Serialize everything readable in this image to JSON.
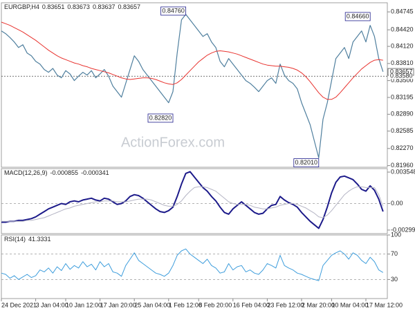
{
  "chart_data": [
    {
      "type": "line",
      "title": "EURGBP,H4",
      "header_values": [
        0.83651,
        0.83673,
        0.83637,
        0.83657
      ],
      "ylim": [
        0.8193,
        0.8491
      ],
      "yticks": [
        {
          "value": 0.84745,
          "label": "0.84745"
        },
        {
          "value": 0.8442,
          "label": "0.84420"
        },
        {
          "value": 0.8412,
          "label": "0.84120"
        },
        {
          "value": 0.8381,
          "label": "0.83810"
        },
        {
          "value": 0.835,
          "label": "0.83500"
        },
        {
          "value": 0.83195,
          "label": "0.83195"
        },
        {
          "value": 0.8289,
          "label": "0.82890"
        },
        {
          "value": 0.82585,
          "label": "0.82585"
        },
        {
          "value": 0.8227,
          "label": "0.82270"
        },
        {
          "value": 0.8196,
          "label": "0.81960"
        }
      ],
      "series": [
        {
          "color": "#4f7f9e",
          "width": 1.2,
          "values": [
            0.844,
            0.8435,
            0.8428,
            0.842,
            0.841,
            0.8415,
            0.84,
            0.8395,
            0.8385,
            0.838,
            0.837,
            0.8365,
            0.8372,
            0.836,
            0.8355,
            0.8368,
            0.8362,
            0.835,
            0.8358,
            0.8365,
            0.836,
            0.8368,
            0.8355,
            0.8362,
            0.837,
            0.8358,
            0.834,
            0.833,
            0.832,
            0.8345,
            0.837,
            0.8395,
            0.8385,
            0.837,
            0.836,
            0.835,
            0.834,
            0.833,
            0.832,
            0.831,
            0.833,
            0.84,
            0.846,
            0.847,
            0.846,
            0.845,
            0.844,
            0.843,
            0.8435,
            0.842,
            0.841,
            0.8385,
            0.8375,
            0.839,
            0.838,
            0.837,
            0.836,
            0.835,
            0.8345,
            0.8338,
            0.833,
            0.834,
            0.835,
            0.8355,
            0.8345,
            0.838,
            0.836,
            0.835,
            0.8345,
            0.8335,
            0.831,
            0.829,
            0.827,
            0.824,
            0.821,
            0.828,
            0.831,
            0.835,
            0.839,
            0.84,
            0.841,
            0.839,
            0.842,
            0.843,
            0.844,
            0.842,
            0.845,
            0.843,
            0.839,
            0.8366
          ]
        },
        {
          "color": "#e8322e",
          "width": 1,
          "values": [
            0.8456,
            0.8453,
            0.845,
            0.8446,
            0.8442,
            0.8438,
            0.8433,
            0.8428,
            0.8423,
            0.8417,
            0.8411,
            0.8405,
            0.84,
            0.8395,
            0.8391,
            0.8388,
            0.8385,
            0.8382,
            0.838,
            0.8377,
            0.8375,
            0.8372,
            0.837,
            0.8368,
            0.8366,
            0.8364,
            0.8361,
            0.8358,
            0.8355,
            0.8353,
            0.8352,
            0.8353,
            0.8354,
            0.8355,
            0.8355,
            0.8354,
            0.8352,
            0.8349,
            0.8346,
            0.8344,
            0.8343,
            0.8346,
            0.8352,
            0.836,
            0.8368,
            0.8376,
            0.8384,
            0.839,
            0.8396,
            0.84,
            0.8403,
            0.8404,
            0.8403,
            0.8402,
            0.84,
            0.8398,
            0.8395,
            0.8392,
            0.8389,
            0.8386,
            0.8383,
            0.838,
            0.8378,
            0.8377,
            0.8376,
            0.8376,
            0.8375,
            0.8374,
            0.8372,
            0.8369,
            0.8364,
            0.8357,
            0.8348,
            0.8338,
            0.8328,
            0.832,
            0.8316,
            0.8316,
            0.832,
            0.8328,
            0.8337,
            0.8346,
            0.8355,
            0.8363,
            0.8371,
            0.8377,
            0.8383,
            0.8387,
            0.8388,
            0.8387
          ]
        }
      ],
      "annotations": [
        {
          "x": 43,
          "value": 0.8476,
          "label": "0.84760"
        },
        {
          "x": 40,
          "value": 0.8282,
          "label": "0.82820"
        },
        {
          "x": 74,
          "value": 0.8201,
          "label": "0.82010"
        },
        {
          "x": 86,
          "value": 0.8466,
          "label": "0.84660"
        }
      ],
      "price_markers": [
        {
          "value": 0.83657,
          "label": "0.83657",
          "style": "box"
        },
        {
          "value": 0.8358,
          "label": "0.83580",
          "style": "dotted"
        }
      ]
    },
    {
      "type": "line",
      "title": "MACD(12,26,9)",
      "header_values": [
        -0.000855,
        -0.000341
      ],
      "ylim": [
        -0.00339,
        0.00394
      ],
      "yticks": [
        0.003548,
        {
          "value": 0,
          "label": "0.00"
        },
        -0.002992
      ],
      "reference_lines": [
        0
      ],
      "series": [
        {
          "color": "#1c1a8a",
          "width": 2,
          "values": [
            -0.0021,
            -0.0021,
            -0.002,
            -0.002,
            -0.0019,
            -0.0019,
            -0.0018,
            -0.0017,
            -0.0015,
            -0.0012,
            -0.0009,
            -0.0006,
            -0.0004,
            -0.0002,
            0.0,
            -0.0001,
            0.0002,
            0.0003,
            0.0002,
            0.0004,
            0.0005,
            0.0006,
            0.0004,
            0.0003,
            0.0006,
            0.0005,
            0.0002,
            -0.0001,
            0.0,
            0.0003,
            0.0008,
            0.001,
            0.0009,
            0.0006,
            0.0002,
            -0.0002,
            -0.0006,
            -0.0009,
            -0.001,
            -0.0008,
            -0.0004,
            0.0008,
            0.0022,
            0.0034,
            0.0036,
            0.003,
            0.0024,
            0.0018,
            0.0014,
            0.0008,
            0.0003,
            -0.0004,
            -0.001,
            -0.0012,
            -0.0006,
            -0.0002,
            0.0002,
            -0.0002,
            -0.0006,
            -0.001,
            -0.0012,
            -0.0011,
            -0.0006,
            -0.0002,
            -0.0001,
            0.0008,
            0.0004,
            0.0001,
            -0.0001,
            -0.0004,
            -0.001,
            -0.0015,
            -0.002,
            -0.0024,
            -0.0028,
            -0.0018,
            -0.0004,
            0.0012,
            0.0024,
            0.003,
            0.0031,
            0.0029,
            0.0027,
            0.0022,
            0.0016,
            0.0014,
            0.002,
            0.0015,
            0.0005,
            -0.0009
          ]
        },
        {
          "color": "#b4b4c4",
          "width": 1,
          "values": [
            -0.002,
            -0.002,
            -0.002,
            -0.002,
            -0.002,
            -0.002,
            -0.0019,
            -0.0019,
            -0.0018,
            -0.0017,
            -0.0016,
            -0.0014,
            -0.0012,
            -0.001,
            -0.0008,
            -0.0006,
            -0.0005,
            -0.0003,
            -0.0002,
            -0.0001,
            0.0,
            0.0001,
            0.0002,
            0.0002,
            0.0003,
            0.0003,
            0.0003,
            0.0002,
            0.0002,
            0.0002,
            0.0003,
            0.0004,
            0.0005,
            0.0005,
            0.0005,
            0.0004,
            0.0002,
            0.0,
            -0.0002,
            -0.0003,
            -0.0003,
            -0.0001,
            0.0003,
            0.0009,
            0.0014,
            0.0018,
            0.0019,
            0.0019,
            0.0018,
            0.0016,
            0.0014,
            0.001,
            0.0006,
            0.0002,
            0.0,
            -0.0001,
            -0.0001,
            -0.0001,
            -0.0002,
            -0.0004,
            -0.0005,
            -0.0006,
            -0.0006,
            -0.0005,
            -0.0004,
            -0.0002,
            -0.0001,
            0.0,
            0.0,
            -0.0001,
            -0.0003,
            -0.0005,
            -0.0008,
            -0.0011,
            -0.0015,
            -0.0016,
            -0.0013,
            -0.0008,
            -0.0002,
            0.0004,
            0.001,
            0.0014,
            0.0017,
            0.0019,
            0.0019,
            0.0018,
            0.0018,
            0.0018,
            0.001,
            -0.0003
          ]
        }
      ]
    },
    {
      "type": "line",
      "title": "RSI(14)",
      "header_values": [
        41.3331
      ],
      "ylim": [
        0,
        100
      ],
      "yticks": [
        100,
        70,
        30
      ],
      "reference_lines": [
        70,
        30
      ],
      "series": [
        {
          "color": "#3d9ddc",
          "width": 1,
          "values": [
            40,
            38,
            32,
            36,
            30,
            34,
            38,
            33,
            36,
            45,
            42,
            48,
            40,
            50,
            44,
            55,
            46,
            52,
            48,
            58,
            50,
            54,
            45,
            58,
            50,
            55,
            42,
            40,
            35,
            52,
            62,
            72,
            60,
            55,
            50,
            45,
            40,
            38,
            35,
            40,
            52,
            68,
            75,
            78,
            70,
            65,
            60,
            55,
            62,
            52,
            48,
            40,
            42,
            55,
            45,
            50,
            52,
            42,
            45,
            40,
            38,
            45,
            55,
            52,
            48,
            68,
            52,
            48,
            45,
            40,
            38,
            35,
            32,
            30,
            28,
            52,
            60,
            68,
            72,
            75,
            70,
            62,
            72,
            68,
            60,
            55,
            65,
            58,
            45,
            41
          ]
        }
      ]
    }
  ],
  "time_axis": {
    "xlim": [
      0,
      90
    ],
    "xticks": [
      {
        "value": 0,
        "label": "24 Dec 2021"
      },
      {
        "value": 8,
        "label": "3 Jan 04:00"
      },
      {
        "value": 15,
        "label": "10 Jan 12:00"
      },
      {
        "value": 23,
        "label": "17 Jan 20:00"
      },
      {
        "value": 31,
        "label": "25 Jan 04:00"
      },
      {
        "value": 39,
        "label": "1 Feb 12:00"
      },
      {
        "value": 46,
        "label": "8 Feb 20:00"
      },
      {
        "value": 54,
        "label": "16 Feb 04:00"
      },
      {
        "value": 62,
        "label": "23 Feb 12:00"
      },
      {
        "value": 70,
        "label": "2 Mar 20:00"
      },
      {
        "value": 77,
        "label": "10 Mar 04:00"
      },
      {
        "value": 85,
        "label": "17 Mar 12:00"
      }
    ]
  },
  "watermark": "ActionForex.com"
}
